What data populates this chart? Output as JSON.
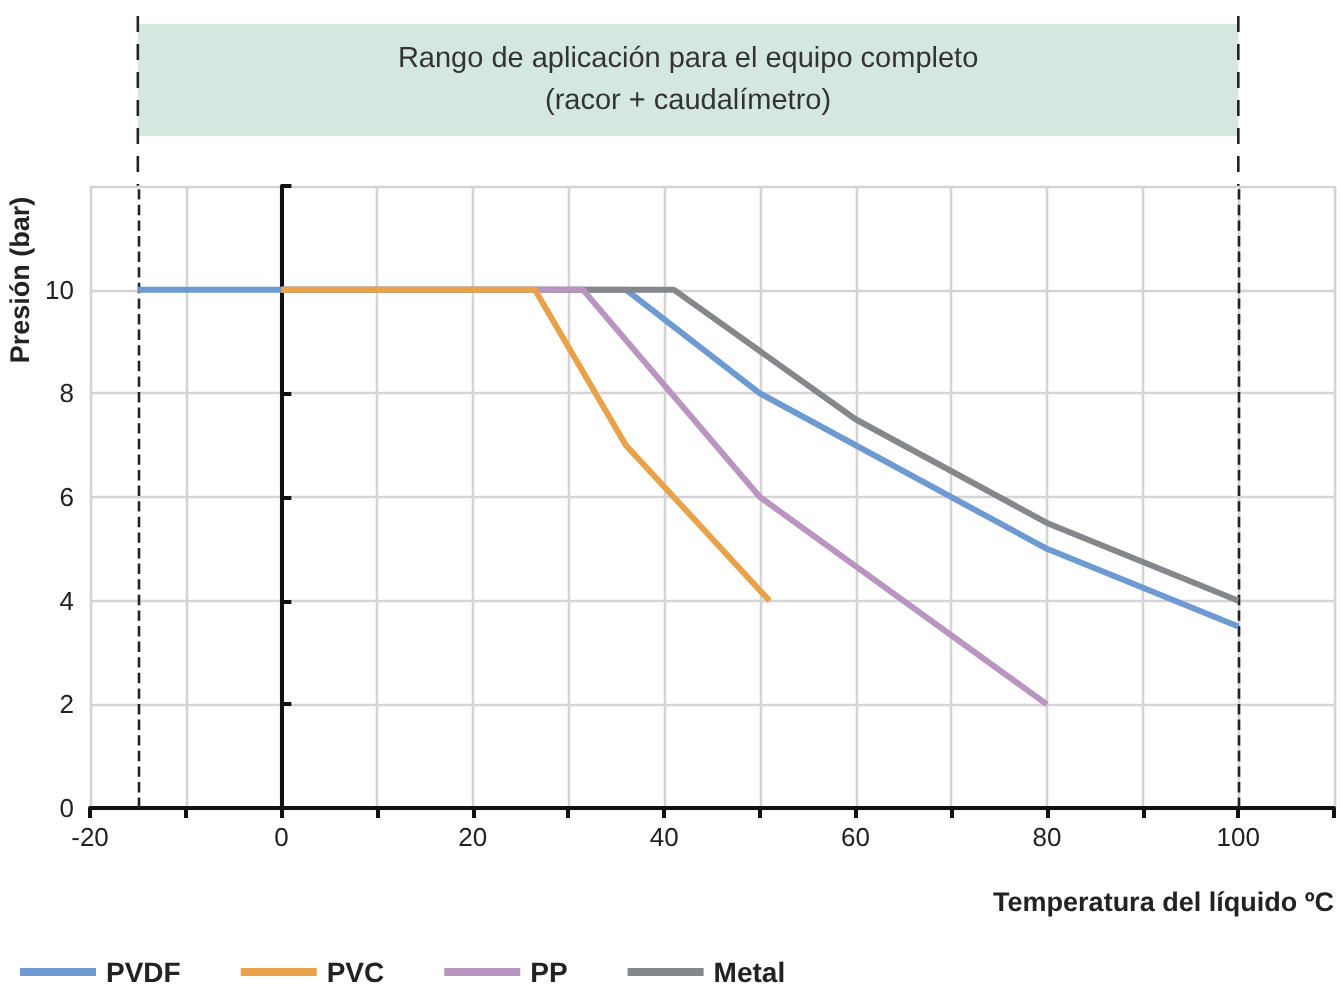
{
  "chart_data": {
    "type": "line",
    "xlabel": "Temperatura del líquido ºC",
    "ylabel": "Presión (bar)",
    "annotations": [
      "Rango de aplicación para el equipo completo\n(racor + caudalímetro)"
    ],
    "series": [
      {
        "name": "PVDF",
        "color": "#6d9bd1",
        "x": [
          -15,
          36,
          50,
          80,
          100
        ],
        "values": [
          10,
          10,
          8,
          5,
          3.5
        ]
      },
      {
        "name": "PVC",
        "color": "#e8a24a",
        "x": [
          0,
          26.5,
          36,
          51
        ],
        "values": [
          10,
          10,
          7,
          4
        ]
      },
      {
        "name": "PP",
        "color": "#b896bf",
        "x": [
          0,
          31.5,
          50,
          80
        ],
        "values": [
          10,
          10,
          6,
          2
        ]
      },
      {
        "name": "Metal",
        "color": "#85878b",
        "x": [
          0,
          41,
          60,
          80,
          100
        ],
        "values": [
          10,
          10,
          7.5,
          5.5,
          4
        ]
      }
    ],
    "xlim": [
      -20,
      110
    ],
    "xticks": [
      -20,
      {
        "value": -10,
        "label": null
      },
      0,
      {
        "value": 10,
        "label": null
      },
      20,
      {
        "value": 30,
        "label": null
      },
      40,
      {
        "value": 50,
        "label": null
      },
      60,
      {
        "value": 70,
        "label": null
      },
      80,
      {
        "value": 90,
        "label": null
      },
      100,
      {
        "value": 110,
        "label": null
      }
    ],
    "ylim": [
      0,
      12
    ],
    "yticks": [
      0,
      2,
      4,
      6,
      8,
      10,
      {
        "value": 12,
        "label": null
      }
    ],
    "ref_lines": [
      {
        "axis": "x",
        "value": -15,
        "color": "#222222",
        "line_style": "dashed"
      },
      {
        "axis": "x",
        "value": 100,
        "color": "#222222",
        "line_style": "dashed"
      }
    ],
    "grid": true,
    "legend": "bottom left",
    "marker": "none",
    "line_style": "solid"
  }
}
